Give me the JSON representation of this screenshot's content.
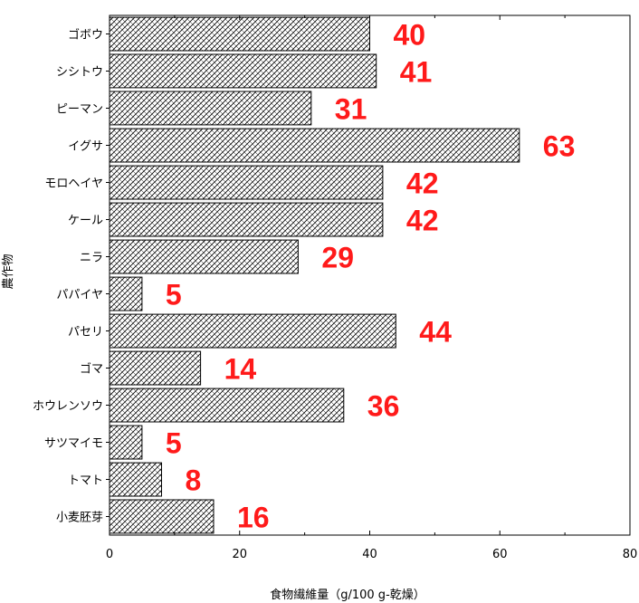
{
  "chart_data": {
    "type": "bar",
    "orientation": "horizontal",
    "categories": [
      "ゴボウ",
      "シシトウ",
      "ピーマン",
      "イグサ",
      "モロヘイヤ",
      "ケール",
      "ニラ",
      "パパイヤ",
      "パセリ",
      "ゴマ",
      "ホウレンソウ",
      "サツマイモ",
      "トマト",
      "小麦胚芽"
    ],
    "values": [
      40,
      41,
      31,
      63,
      42,
      42,
      29,
      5,
      44,
      14,
      36,
      5,
      8,
      16
    ],
    "data_labels": [
      "40",
      "41",
      "31",
      "63",
      "42",
      "42",
      "29",
      "5",
      "44",
      "14",
      "36",
      "5",
      "8",
      "16"
    ],
    "xlabel": "食物繊維量（g/100 g-乾燥）",
    "ylabel": "農作物",
    "xlim": [
      0,
      80
    ],
    "xticks": [
      "0",
      "20",
      "40",
      "60",
      "80"
    ],
    "grid": false,
    "legend": "none",
    "colors": {
      "bar_fill_pattern": "diagonal-hatch",
      "bar_stroke": "#000000",
      "label": "#ff1a1a"
    }
  }
}
